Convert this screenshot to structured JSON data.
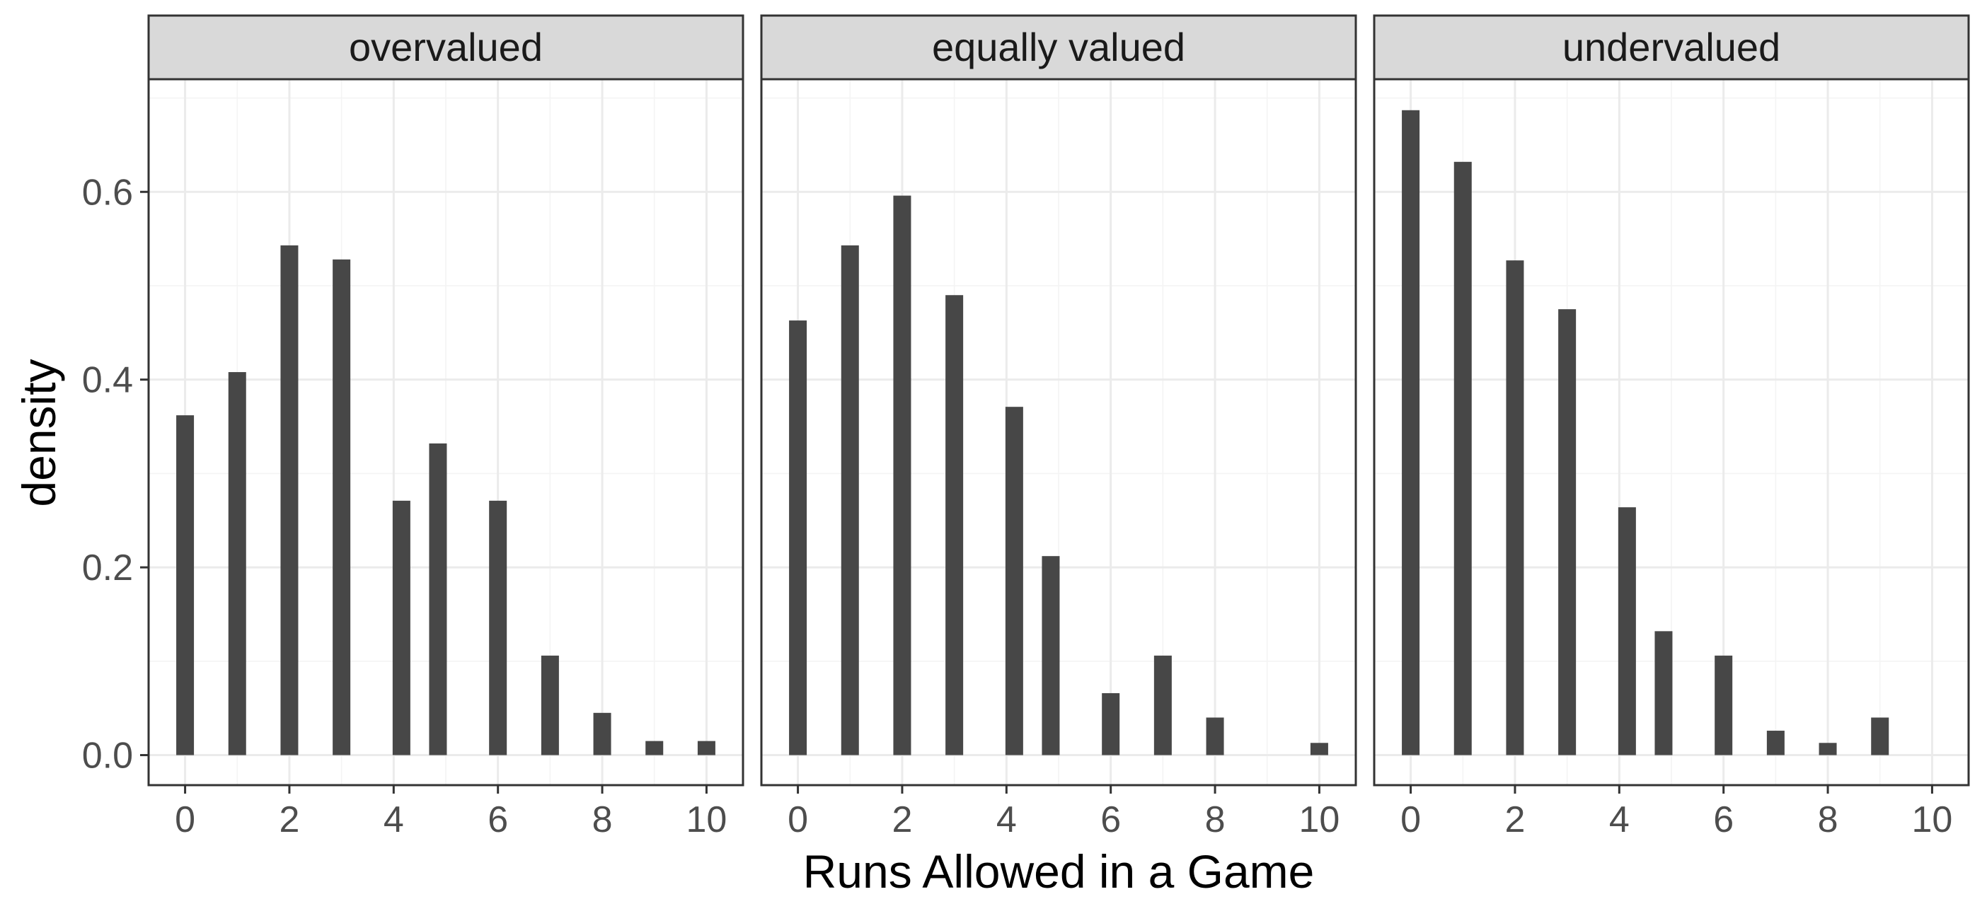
{
  "chart_data": {
    "type": "bar",
    "xlabel": "Runs Allowed in a Game",
    "ylabel": "density",
    "xlim": [
      -0.7,
      10.7
    ],
    "ylim": [
      -0.032,
      0.72
    ],
    "x_ticks": [
      0,
      2,
      4,
      6,
      8,
      10
    ],
    "y_ticks": [
      0.0,
      0.2,
      0.4,
      0.6
    ],
    "y_tick_labels": [
      "0.0",
      "0.2",
      "0.4",
      "0.6"
    ],
    "grid": true,
    "legend": "none",
    "bar_color": "#474747",
    "panels": [
      {
        "facet": "overvalued",
        "bars": [
          {
            "x": 0,
            "y": 0.362
          },
          {
            "x": 1,
            "y": 0.408
          },
          {
            "x": 2,
            "y": 0.543
          },
          {
            "x": 3,
            "y": 0.528
          },
          {
            "x": 4.15,
            "y": 0.271
          },
          {
            "x": 4.85,
            "y": 0.332
          },
          {
            "x": 6,
            "y": 0.271
          },
          {
            "x": 7,
            "y": 0.106
          },
          {
            "x": 8,
            "y": 0.045
          },
          {
            "x": 9,
            "y": 0.015
          },
          {
            "x": 10,
            "y": 0.015
          }
        ]
      },
      {
        "facet": "equally valued",
        "bars": [
          {
            "x": 0,
            "y": 0.463
          },
          {
            "x": 1,
            "y": 0.543
          },
          {
            "x": 2,
            "y": 0.596
          },
          {
            "x": 3,
            "y": 0.49
          },
          {
            "x": 4.15,
            "y": 0.371
          },
          {
            "x": 4.85,
            "y": 0.212
          },
          {
            "x": 6,
            "y": 0.066
          },
          {
            "x": 7,
            "y": 0.106
          },
          {
            "x": 8,
            "y": 0.04
          },
          {
            "x": 10,
            "y": 0.013
          }
        ]
      },
      {
        "facet": "undervalued",
        "bars": [
          {
            "x": 0,
            "y": 0.687
          },
          {
            "x": 1,
            "y": 0.632
          },
          {
            "x": 2,
            "y": 0.527
          },
          {
            "x": 3,
            "y": 0.475
          },
          {
            "x": 4.15,
            "y": 0.264
          },
          {
            "x": 4.85,
            "y": 0.132
          },
          {
            "x": 6,
            "y": 0.106
          },
          {
            "x": 7,
            "y": 0.026
          },
          {
            "x": 8,
            "y": 0.013
          },
          {
            "x": 9,
            "y": 0.04
          }
        ]
      }
    ]
  }
}
